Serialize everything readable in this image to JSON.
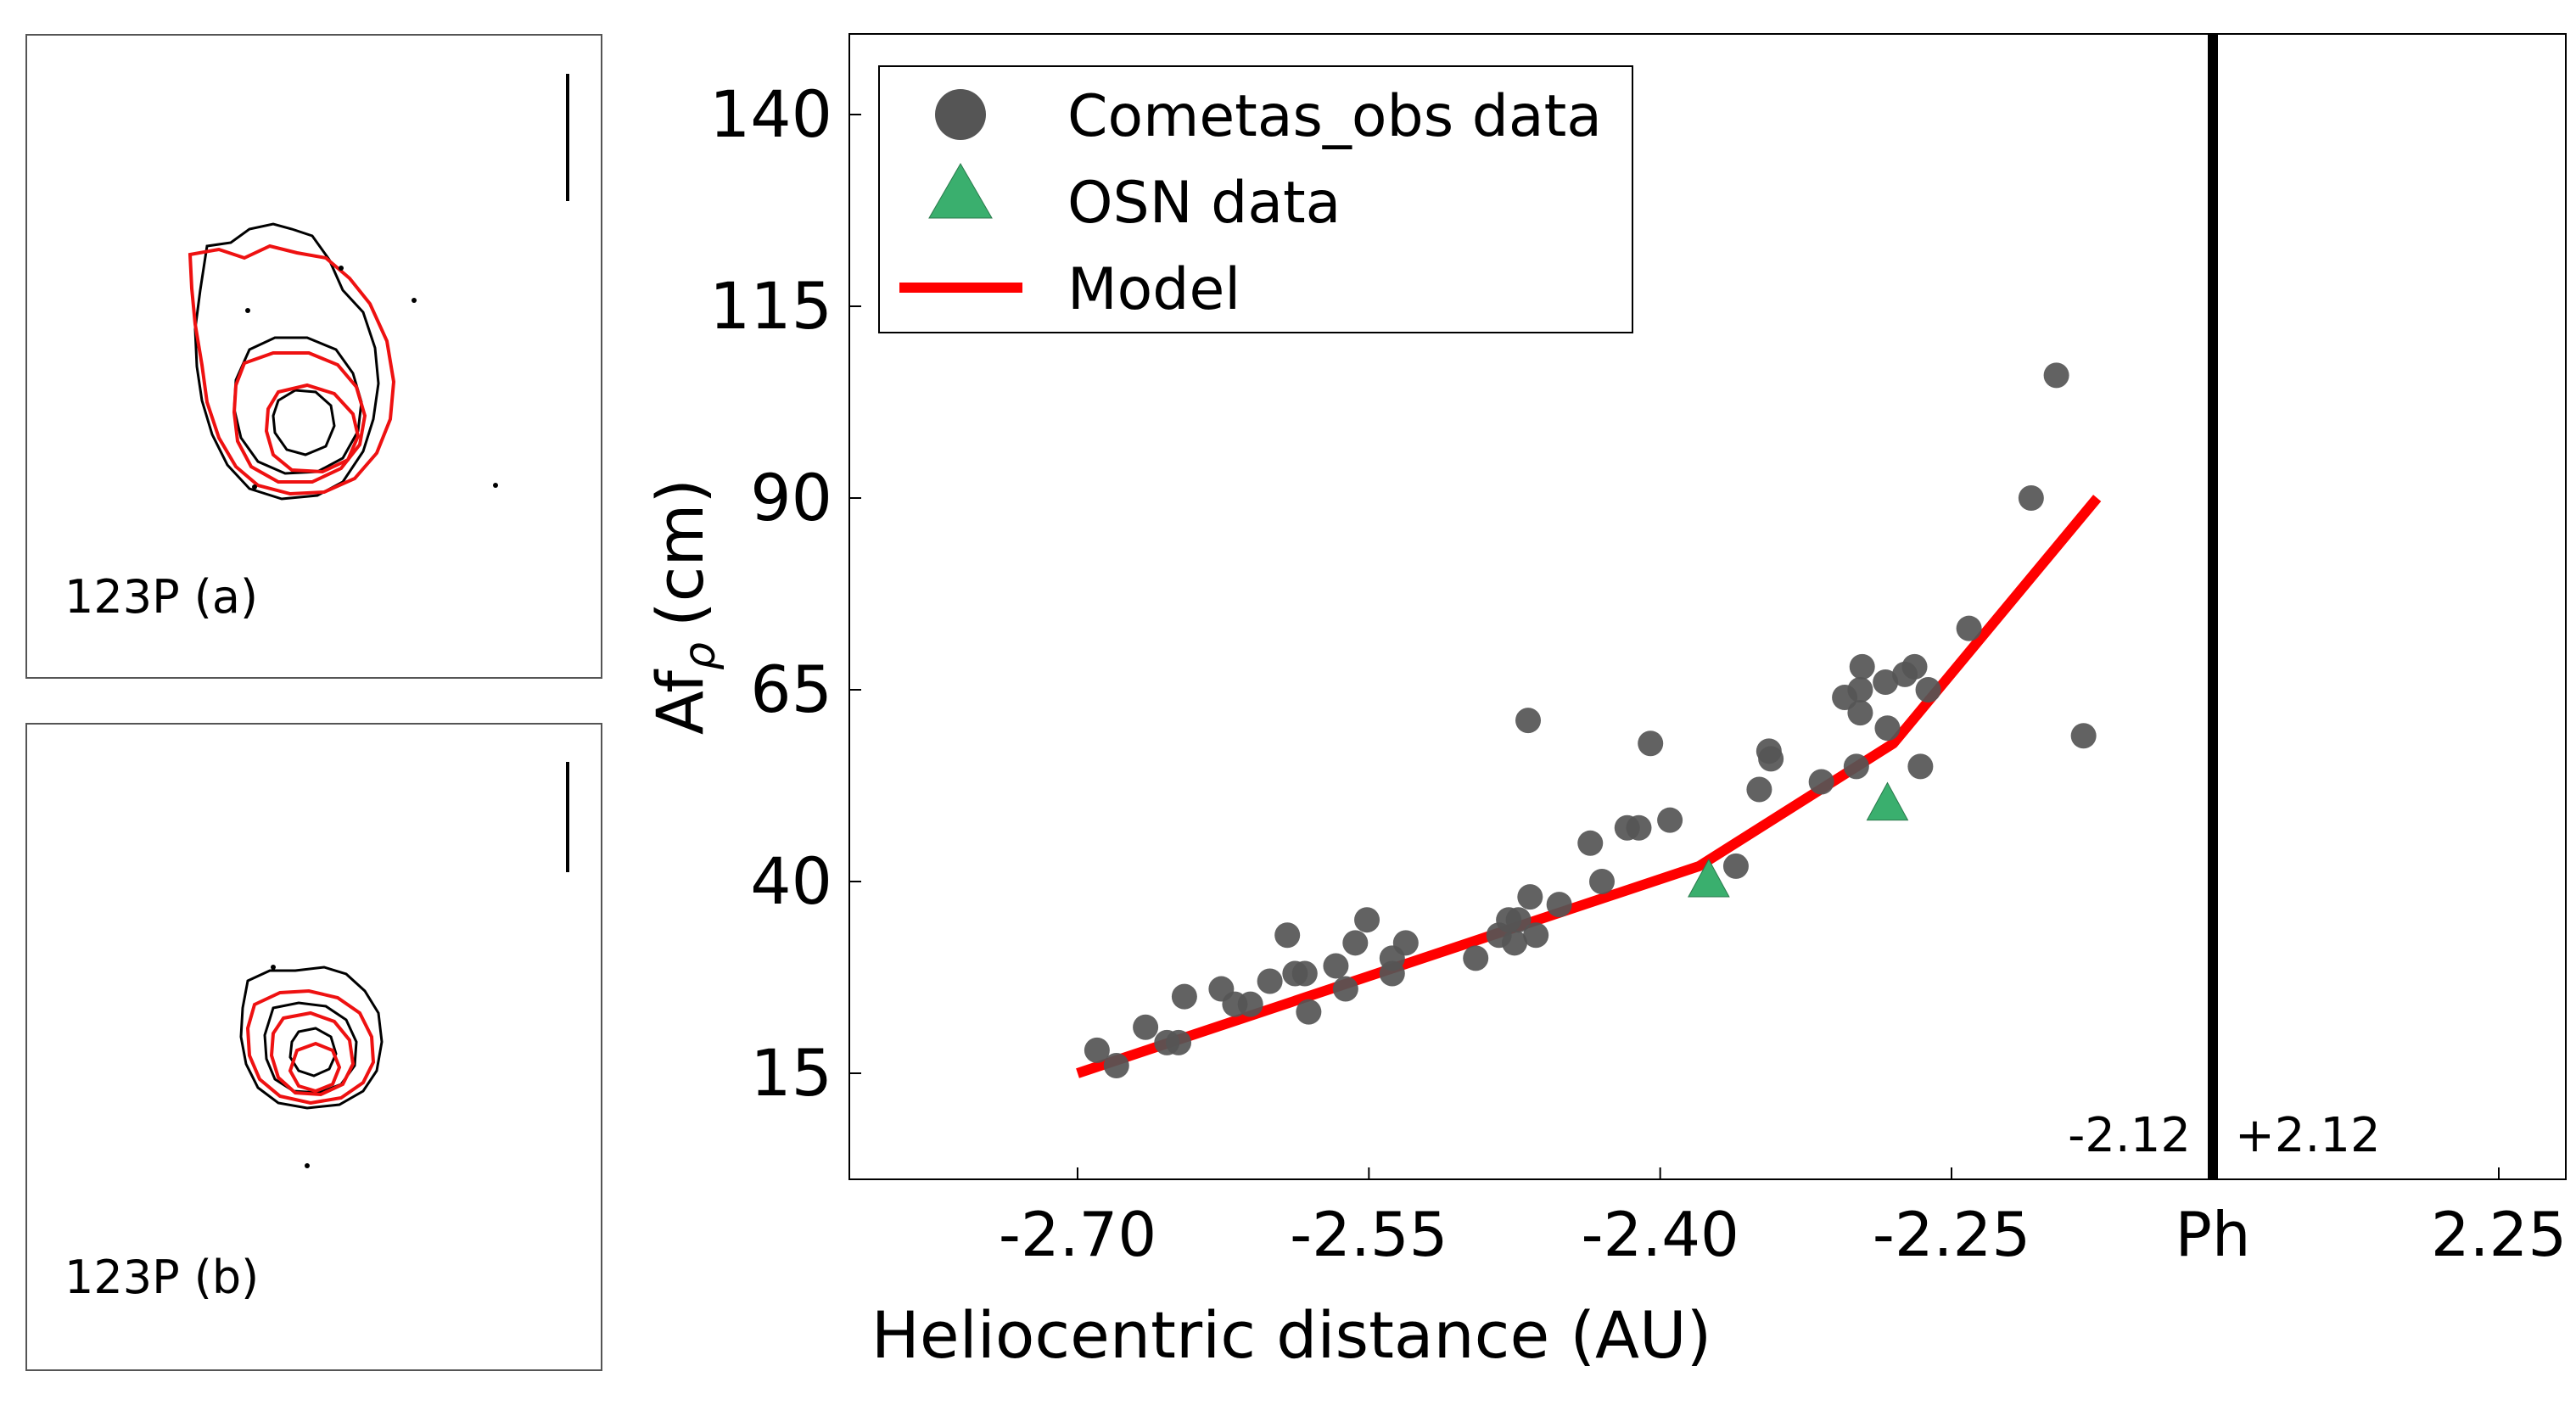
{
  "panels": [
    {
      "label": "123P (a)"
    },
    {
      "label": "123P (b)"
    }
  ],
  "chart_data": {
    "type": "scatter",
    "title": "",
    "xlabel": "Heliocentric distance (AU)",
    "ylabel": "Af",
    "ylabel_subscript": "ρ",
    "ylabel_unit": "(cm)",
    "xlim": [
      -2.8,
      2.3
    ],
    "ylim": [
      0,
      150
    ],
    "x_ticks": [
      {
        "value": -2.7,
        "label": "-2.70"
      },
      {
        "value": -2.55,
        "label": "-2.55"
      },
      {
        "value": -2.4,
        "label": "-2.40"
      },
      {
        "value": -2.25,
        "label": "-2.25"
      },
      {
        "value": 2.25,
        "label": "2.25"
      }
    ],
    "y_ticks": [
      15,
      40,
      65,
      90,
      115,
      140
    ],
    "perihelion": {
      "label": "Ph",
      "left_label": "-2.12",
      "right_label": "+2.12",
      "color": "#000000"
    },
    "legend": {
      "position": "top-left",
      "entries": [
        {
          "name": "Cometas_obs data",
          "marker": "circle",
          "color": "#555555"
        },
        {
          "name": "OSN data",
          "marker": "triangle",
          "color": "#3aaf6e"
        },
        {
          "name": "Model",
          "marker": "line",
          "color": "#ff0000"
        }
      ]
    },
    "series": [
      {
        "name": "Cometas_obs data",
        "type": "scatter",
        "color": "#555555",
        "points": [
          [
            -2.69,
            18
          ],
          [
            -2.68,
            16
          ],
          [
            -2.665,
            21
          ],
          [
            -2.654,
            19
          ],
          [
            -2.648,
            19
          ],
          [
            -2.645,
            25
          ],
          [
            -2.626,
            26
          ],
          [
            -2.619,
            24
          ],
          [
            -2.611,
            24
          ],
          [
            -2.601,
            27
          ],
          [
            -2.592,
            33
          ],
          [
            -2.588,
            28
          ],
          [
            -2.583,
            28
          ],
          [
            -2.581,
            23
          ],
          [
            -2.567,
            29
          ],
          [
            -2.562,
            26
          ],
          [
            -2.557,
            32
          ],
          [
            -2.551,
            35
          ],
          [
            -2.538,
            30
          ],
          [
            -2.538,
            28
          ],
          [
            -2.531,
            32
          ],
          [
            -2.495,
            30
          ],
          [
            -2.483,
            33
          ],
          [
            -2.475,
            32
          ],
          [
            -2.473,
            35
          ],
          [
            -2.478,
            35
          ],
          [
            -2.467,
            38
          ],
          [
            -2.468,
            61
          ],
          [
            -2.464,
            33
          ],
          [
            -2.452,
            37
          ],
          [
            -2.436,
            45
          ],
          [
            -2.43,
            40
          ],
          [
            -2.417,
            47
          ],
          [
            -2.411,
            47
          ],
          [
            -2.405,
            58
          ],
          [
            -2.395,
            48
          ],
          [
            -2.361,
            42
          ],
          [
            -2.349,
            52
          ],
          [
            -2.344,
            57
          ],
          [
            -2.343,
            56
          ],
          [
            -2.317,
            53
          ],
          [
            -2.305,
            64
          ],
          [
            -2.297,
            65
          ],
          [
            -2.296,
            68
          ],
          [
            -2.297,
            62
          ],
          [
            -2.299,
            55
          ],
          [
            -2.284,
            66
          ],
          [
            -2.274,
            67
          ],
          [
            -2.283,
            60
          ],
          [
            -2.269,
            68
          ],
          [
            -2.262,
            65
          ],
          [
            -2.266,
            55
          ],
          [
            -2.241,
            73
          ],
          [
            -2.209,
            90
          ],
          [
            -2.196,
            106
          ],
          [
            -2.182,
            59
          ]
        ]
      },
      {
        "name": "OSN data",
        "type": "scatter",
        "color": "#3aaf6e",
        "points": [
          [
            -2.375,
            40
          ],
          [
            -2.283,
            50
          ]
        ]
      },
      {
        "name": "Model",
        "type": "line",
        "color": "#ff0000",
        "points": [
          [
            -2.7,
            15
          ],
          [
            -2.38,
            42
          ],
          [
            -2.28,
            58
          ],
          [
            -2.175,
            90
          ]
        ]
      }
    ]
  }
}
